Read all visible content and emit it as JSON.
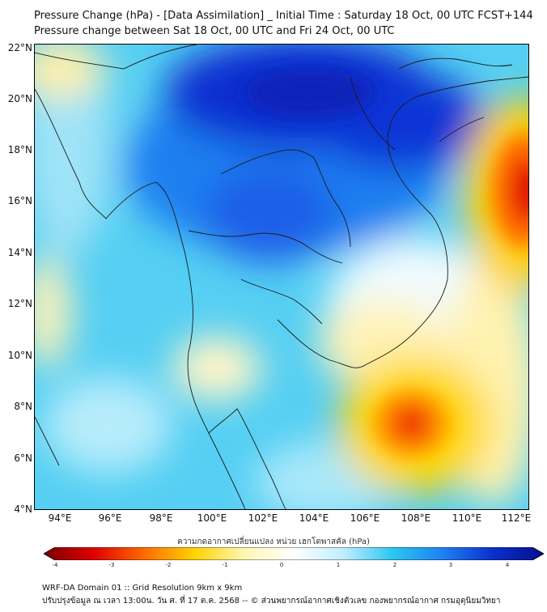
{
  "title": {
    "line1": "Pressure Change (hPa) - [Data Assimilation] _ Initial Time : Saturday 18 Oct, 00 UTC FCST+144",
    "line2": "Pressure change between Sat 18 Oct, 00 UTC and Fri 24 Oct, 00 UTC"
  },
  "map": {
    "lat_ticks": [
      "22°N",
      "20°N",
      "18°N",
      "16°N",
      "14°N",
      "12°N",
      "10°N",
      "8°N",
      "6°N",
      "4°N"
    ],
    "lon_ticks": [
      "94°E",
      "96°E",
      "98°E",
      "100°E",
      "102°E",
      "104°E",
      "106°E",
      "108°E",
      "110°E",
      "112°E"
    ],
    "lat_range": [
      4,
      22.2
    ],
    "lon_range": [
      93,
      112.5
    ]
  },
  "colorbar": {
    "label": "ความกดอากาศเปลี่ยนแปลง หน่วย เฮกโตพาสคัล (hPa)",
    "ticks": [
      "-4",
      "-3",
      "-2",
      "-1",
      "0",
      "1",
      "2",
      "3",
      "4"
    ],
    "range": [
      -4,
      4
    ],
    "colors": [
      "#7a0000",
      "#e00000",
      "#ff6a00",
      "#ffd200",
      "#fff7b0",
      "#ffffff",
      "#bfeeff",
      "#29c6f0",
      "#1f7ff0",
      "#0a2fcc",
      "#070f8c"
    ]
  },
  "footer": {
    "line1": "WRF-DA Domain 01 :: Grid Resolution 9km x 9km",
    "line2": "ปรับปรุงข้อมูล ณ เวลา 13:00น. วัน ศ. ที่ 17 ต.ค. 2568 -- © ส่วนพยากรณ์อากาศเชิงตัวเลข กองพยากรณ์อากาศ กรมอุตุนิยมวิทยา"
  }
}
